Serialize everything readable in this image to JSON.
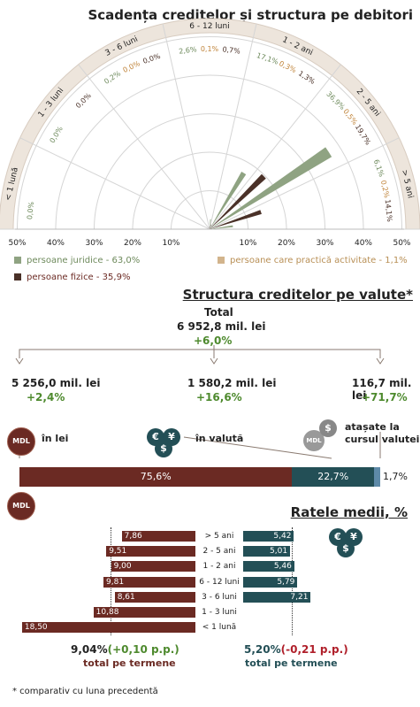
{
  "section1": {
    "title": "Scadența creditelor și structura pe debitori",
    "sectors": [
      {
        "name": "< 1 lună",
        "values": {
          "juridice": "0,0%",
          "activitate": "",
          "fizice": ""
        }
      },
      {
        "name": "1 - 3 luni",
        "values": {
          "juridice": "0,0%",
          "activitate": "",
          "fizice": "0,0%"
        }
      },
      {
        "name": "3 - 6 luni",
        "values": {
          "juridice": "0,2%",
          "activitate": "0,0%",
          "fizice": "0,0%"
        }
      },
      {
        "name": "6 - 12 luni",
        "values": {
          "juridice": "2,6%",
          "activitate": "0,1%",
          "fizice": "0,7%"
        }
      },
      {
        "name": "1 - 2 ani",
        "values": {
          "juridice": "17,1%",
          "activitate": "0,3%",
          "fizice": "1,3%"
        }
      },
      {
        "name": "2 - 5 ani",
        "values": {
          "juridice": "36,9%",
          "activitate": "0,5%",
          "fizice": "19,7%"
        }
      },
      {
        "name": "> 5 ani",
        "values": {
          "juridice": "6,1%",
          "activitate": "0,2%",
          "fizice": "14,1%"
        }
      }
    ],
    "axis_left": [
      "50%",
      "40%",
      "30%",
      "20%",
      "10%"
    ],
    "axis_right": [
      "10%",
      "20%",
      "30%",
      "40%",
      "50%"
    ],
    "legend": {
      "juridice": "persoane juridice - 63,0%",
      "activitate": "persoane care practică activitate - 1,1%",
      "fizice": "persoane fizice - 35,9%"
    },
    "colors": {
      "juridice": "#8fa382",
      "activitate": "#d2b48c",
      "fizice": "#4a3128",
      "band": "#ede5dc"
    }
  },
  "section2": {
    "title": "Structura creditelor pe valute*",
    "total_label": "Total",
    "total_value": "6 952,8 mil. lei",
    "total_change": "+6,0%",
    "lei_value": "5 256,0 mil. lei",
    "lei_change": "+2,4%",
    "valuta_value": "1 580,2 mil. lei",
    "valuta_change": "+16,6%",
    "atasate_value": "116,7 mil. lei",
    "atasate_change": "+71,7%",
    "mdl_icon": "MDL",
    "lei_label": "în lei",
    "valuta_label": "în valută",
    "atasate_label_1": "atașate la",
    "atasate_label_2": "cursul valutei",
    "bar": {
      "lei": "75,6%",
      "valuta": "22,7%",
      "atasate": "1,7%"
    },
    "colors": {
      "lei": "#6b2a23",
      "valuta": "#234f56",
      "atasate": "#5e8aa8"
    }
  },
  "section3": {
    "title": "Ratele medii, %",
    "mdl_icon": "MDL",
    "rows": [
      "> 5 ani",
      "2 - 5 ani",
      "1 - 2 ani",
      "6 - 12 luni",
      "3 - 6 luni",
      "1 - 3 luni",
      "< 1 lună"
    ],
    "lei": [
      "7,86",
      "9,51",
      "9,00",
      "9,81",
      "8,61",
      "10,88",
      "18,50"
    ],
    "valuta": [
      "5,42",
      "5,01",
      "5,46",
      "5,79",
      "7,21",
      "",
      ""
    ],
    "lei_total": "9,04%",
    "lei_total_change": "(+0,10 p.p.)",
    "lei_total_label": "total pe termene",
    "valuta_total": "5,20%",
    "valuta_total_change": "(-0,21 p.p.)",
    "valuta_total_label": "total pe termene"
  },
  "footnote": "* comparativ cu luna precedentă",
  "chart_data": [
    {
      "type": "radial-bar",
      "title": "Scadența creditelor și structura pe debitori",
      "categories": [
        "< 1 lună",
        "1 - 3 luni",
        "3 - 6 luni",
        "6 - 12 luni",
        "1 - 2 ani",
        "2 - 5 ani",
        "> 5 ani"
      ],
      "series": [
        {
          "name": "persoane juridice - 63,0%",
          "values": [
            0.0,
            0.0,
            0.2,
            2.6,
            17.1,
            36.9,
            6.1
          ]
        },
        {
          "name": "persoane care practică activitate - 1,1%",
          "values": [
            null,
            null,
            0.0,
            0.1,
            0.3,
            0.5,
            0.2
          ]
        },
        {
          "name": "persoane fizice - 35,9%",
          "values": [
            null,
            0.0,
            0.0,
            0.7,
            1.3,
            19.7,
            14.1
          ]
        }
      ],
      "ylim": [
        0,
        50
      ]
    },
    {
      "type": "bar",
      "title": "Structura creditelor pe valute*",
      "categories": [
        "în lei",
        "în valută",
        "atașate la cursul valutei"
      ],
      "values": [
        75.6,
        22.7,
        1.7
      ]
    },
    {
      "type": "bar",
      "title": "Ratele medii, %",
      "categories": [
        "> 5 ani",
        "2 - 5 ani",
        "1 - 2 ani",
        "6 - 12 luni",
        "3 - 6 luni",
        "1 - 3 luni",
        "< 1 lună"
      ],
      "series": [
        {
          "name": "în lei",
          "values": [
            7.86,
            9.51,
            9.0,
            9.81,
            8.61,
            10.88,
            18.5
          ]
        },
        {
          "name": "în valută",
          "values": [
            5.42,
            5.01,
            5.46,
            5.79,
            7.21,
            null,
            null
          ]
        }
      ]
    }
  ]
}
